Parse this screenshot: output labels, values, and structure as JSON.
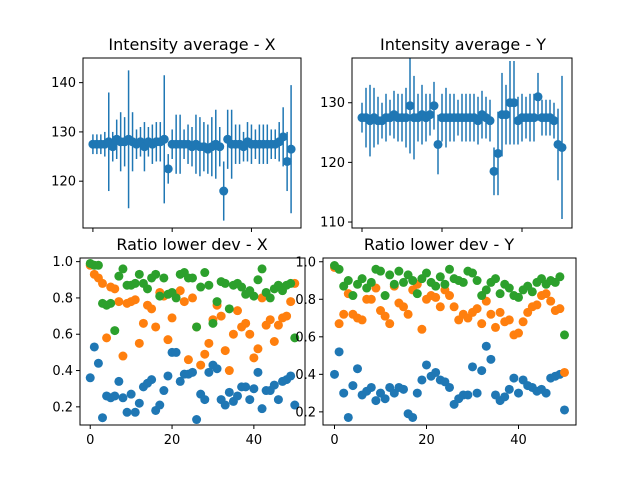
{
  "colors": {
    "blue": "#1f77b4",
    "orange": "#ff7f0e",
    "green": "#2ca02c"
  },
  "chart_data": [
    {
      "type": "scatter",
      "title": "Intensity average - X",
      "xlim": [
        -2.5,
        52.5
      ],
      "ylim": [
        110.5,
        145.0
      ],
      "yticks": [
        "120",
        "130",
        "140"
      ],
      "ytick_values": [
        120,
        130,
        140
      ],
      "xticks": [
        0,
        20,
        40
      ],
      "show_xtick_labels": false,
      "series": [
        {
          "color": "blue",
          "errorbars": true,
          "x": [
            0,
            1,
            2,
            3,
            4,
            5,
            6,
            7,
            8,
            9,
            10,
            11,
            12,
            13,
            14,
            15,
            16,
            17,
            18,
            19,
            20,
            21,
            22,
            23,
            24,
            25,
            26,
            27,
            28,
            29,
            30,
            31,
            32,
            33,
            34,
            35,
            36,
            37,
            38,
            39,
            40,
            41,
            42,
            43,
            44,
            45,
            46,
            47,
            48,
            49,
            50
          ],
          "y": [
            127.5,
            127.5,
            127.5,
            127.5,
            128.0,
            127.0,
            128.5,
            128.0,
            128.0,
            128.5,
            128.0,
            127.5,
            128.0,
            127.0,
            128.0,
            127.5,
            128.0,
            128.0,
            128.5,
            122.5,
            127.5,
            127.5,
            127.5,
            127.5,
            127.5,
            127.0,
            127.5,
            127.0,
            127.0,
            126.5,
            127.0,
            127.5,
            127.0,
            118.0,
            128.5,
            127.5,
            127.5,
            127.5,
            127.0,
            128.0,
            127.5,
            127.5,
            127.5,
            127.5,
            127.5,
            127.5,
            127.5,
            128.0,
            129.0,
            124.0,
            126.5
          ],
          "err": [
            2.0,
            2.0,
            2.0,
            2.5,
            10.0,
            3.0,
            4.0,
            6.0,
            5.0,
            14.0,
            6.0,
            3.0,
            3.0,
            5.0,
            3.0,
            4.0,
            4.0,
            4.0,
            13.0,
            3.0,
            3.0,
            6.0,
            6.0,
            3.0,
            4.0,
            4.0,
            6.0,
            6.0,
            5.0,
            5.0,
            6.0,
            7.0,
            4.0,
            6.0,
            6.0,
            7.0,
            4.0,
            4.0,
            3.0,
            4.0,
            4.0,
            3.0,
            4.0,
            4.0,
            4.0,
            3.0,
            3.0,
            4.0,
            6.0,
            6.0,
            13.0
          ]
        }
      ]
    },
    {
      "type": "scatter",
      "title": "Intensity average - Y",
      "xlim": [
        -2.5,
        52.5
      ],
      "ylim": [
        109.0,
        137.5
      ],
      "yticks": [
        "110",
        "120",
        "130"
      ],
      "ytick_values": [
        110,
        120,
        130
      ],
      "xticks": [
        0,
        20,
        40
      ],
      "show_xtick_labels": false,
      "series": [
        {
          "color": "blue",
          "errorbars": true,
          "x": [
            0,
            1,
            2,
            3,
            4,
            5,
            6,
            7,
            8,
            9,
            10,
            11,
            12,
            13,
            14,
            15,
            16,
            17,
            18,
            19,
            20,
            21,
            22,
            23,
            24,
            25,
            26,
            27,
            28,
            29,
            30,
            31,
            32,
            33,
            34,
            35,
            36,
            37,
            38,
            39,
            40,
            41,
            42,
            43,
            44,
            45,
            46,
            47,
            48,
            49,
            50
          ],
          "y": [
            127.5,
            127.5,
            127.0,
            127.5,
            127.0,
            127.0,
            127.5,
            127.5,
            128.0,
            127.5,
            127.5,
            127.5,
            129.5,
            127.5,
            127.5,
            128.0,
            127.5,
            128.0,
            129.5,
            123.0,
            127.5,
            127.5,
            127.5,
            127.5,
            127.5,
            127.5,
            127.5,
            127.5,
            127.5,
            127.0,
            128.0,
            127.5,
            127.0,
            118.5,
            121.5,
            128.0,
            128.0,
            130.0,
            130.0,
            127.0,
            127.5,
            127.5,
            127.5,
            127.5,
            131.0,
            127.5,
            127.5,
            127.5,
            127.0,
            123.0,
            122.5
          ],
          "err": [
            2.5,
            5.0,
            6.0,
            5.0,
            4.0,
            3.0,
            4.0,
            3.0,
            4.0,
            4.0,
            4.0,
            5.0,
            8.0,
            7.0,
            4.0,
            5.0,
            4.0,
            3.5,
            4.0,
            5.0,
            4.0,
            5.0,
            4.0,
            4.0,
            3.0,
            4.0,
            4.0,
            4.0,
            4.0,
            4.0,
            4.0,
            3.5,
            3.5,
            4.0,
            7.0,
            7.0,
            5.0,
            7.0,
            7.0,
            4.0,
            4.0,
            3.5,
            4.0,
            4.0,
            4.0,
            3.0,
            3.0,
            3.0,
            3.0,
            6.0,
            12.0
          ]
        }
      ]
    },
    {
      "type": "scatter",
      "title": "Ratio lower dev - X",
      "xlim": [
        -2.5,
        52.5
      ],
      "ylim": [
        0.1,
        1.02
      ],
      "yticks": [
        "0.2",
        "0.4",
        "0.6",
        "0.8",
        "1.0"
      ],
      "ytick_values": [
        0.2,
        0.4,
        0.6,
        0.8,
        1.0
      ],
      "xticks": [
        0,
        20,
        40
      ],
      "xtick_labels": [
        "0",
        "20",
        "40"
      ],
      "show_xtick_labels": true,
      "series": [
        {
          "color": "blue",
          "x": [
            0,
            1,
            2,
            3,
            4,
            5,
            6,
            7,
            8,
            9,
            10,
            11,
            12,
            13,
            14,
            15,
            16,
            17,
            18,
            19,
            20,
            21,
            22,
            23,
            24,
            25,
            26,
            27,
            28,
            29,
            30,
            31,
            32,
            33,
            34,
            35,
            36,
            37,
            38,
            39,
            40,
            41,
            42,
            43,
            44,
            45,
            46,
            47,
            48,
            49,
            50
          ],
          "y": [
            0.36,
            0.53,
            0.44,
            0.14,
            0.26,
            0.25,
            0.26,
            0.34,
            0.25,
            0.17,
            0.27,
            0.17,
            0.22,
            0.31,
            0.33,
            0.35,
            0.18,
            0.21,
            0.29,
            0.37,
            0.5,
            0.5,
            0.34,
            0.38,
            0.38,
            0.39,
            0.13,
            0.27,
            0.24,
            0.39,
            0.43,
            0.41,
            0.24,
            0.21,
            0.28,
            0.23,
            0.26,
            0.31,
            0.31,
            0.24,
            0.3,
            0.39,
            0.19,
            0.29,
            0.29,
            0.32,
            0.24,
            0.34,
            0.35,
            0.37,
            0.21
          ]
        },
        {
          "color": "orange",
          "x": [
            0,
            1,
            2,
            3,
            4,
            5,
            6,
            7,
            8,
            9,
            10,
            11,
            12,
            13,
            14,
            15,
            16,
            17,
            18,
            19,
            20,
            21,
            22,
            23,
            24,
            25,
            26,
            27,
            28,
            29,
            30,
            31,
            32,
            33,
            34,
            35,
            36,
            37,
            38,
            39,
            40,
            41,
            42,
            43,
            44,
            45,
            46,
            47,
            48,
            49,
            50
          ],
          "y": [
            0.98,
            0.93,
            0.91,
            0.88,
            0.58,
            0.86,
            0.85,
            0.78,
            0.48,
            0.77,
            0.78,
            0.79,
            0.55,
            0.66,
            0.76,
            0.74,
            0.64,
            0.83,
            0.81,
            0.57,
            0.69,
            0.82,
            0.84,
            0.78,
            0.46,
            0.8,
            0.64,
            0.43,
            0.49,
            0.55,
            0.68,
            0.76,
            0.7,
            0.51,
            0.4,
            0.6,
            0.73,
            0.64,
            0.66,
            0.6,
            0.47,
            0.52,
            0.8,
            0.65,
            0.68,
            0.56,
            0.65,
            0.69,
            0.7,
            0.78,
            0.88
          ]
        },
        {
          "color": "green",
          "x": [
            0,
            1,
            2,
            3,
            4,
            5,
            6,
            7,
            8,
            9,
            10,
            11,
            12,
            13,
            14,
            15,
            16,
            17,
            18,
            19,
            20,
            21,
            22,
            23,
            24,
            25,
            26,
            27,
            28,
            29,
            30,
            31,
            32,
            33,
            34,
            35,
            36,
            37,
            38,
            39,
            40,
            41,
            42,
            43,
            44,
            45,
            46,
            47,
            48,
            49,
            50
          ],
          "y": [
            0.99,
            0.98,
            0.98,
            0.77,
            0.76,
            0.77,
            0.62,
            0.92,
            0.96,
            0.87,
            0.87,
            0.88,
            0.93,
            0.88,
            0.85,
            0.91,
            0.93,
            0.81,
            0.91,
            0.82,
            0.83,
            0.8,
            0.93,
            0.94,
            0.91,
            0.91,
            0.64,
            0.86,
            0.94,
            0.87,
            0.66,
            0.78,
            0.89,
            0.88,
            0.74,
            0.87,
            0.88,
            0.86,
            0.82,
            0.84,
            0.81,
            0.9,
            0.96,
            0.83,
            0.8,
            0.85,
            0.87,
            0.84,
            0.87,
            0.88,
            0.58
          ]
        }
      ]
    },
    {
      "type": "scatter",
      "title": "Ratio lower dev - Y",
      "xlim": [
        -2.5,
        52.5
      ],
      "ylim": [
        0.13,
        1.02
      ],
      "yticks": [
        "0.2",
        "0.4",
        "0.6",
        "0.8",
        "1.0"
      ],
      "ytick_values": [
        0.2,
        0.4,
        0.6,
        0.8,
        1.0
      ],
      "xticks": [
        0,
        20,
        40
      ],
      "xtick_labels": [
        "0",
        "20",
        "40"
      ],
      "show_xtick_labels": true,
      "series": [
        {
          "color": "blue",
          "x": [
            0,
            1,
            2,
            3,
            4,
            5,
            6,
            7,
            8,
            9,
            10,
            11,
            12,
            13,
            14,
            15,
            16,
            17,
            18,
            19,
            20,
            21,
            22,
            23,
            24,
            25,
            26,
            27,
            28,
            29,
            30,
            31,
            32,
            33,
            34,
            35,
            36,
            37,
            38,
            39,
            40,
            41,
            42,
            43,
            44,
            45,
            46,
            47,
            48,
            49,
            50
          ],
          "y": [
            0.4,
            0.52,
            0.3,
            0.17,
            0.34,
            0.43,
            0.29,
            0.31,
            0.33,
            0.26,
            0.3,
            0.27,
            0.33,
            0.3,
            0.33,
            0.32,
            0.19,
            0.17,
            0.3,
            0.37,
            0.45,
            0.39,
            0.41,
            0.37,
            0.36,
            0.33,
            0.24,
            0.27,
            0.29,
            0.29,
            0.44,
            0.3,
            0.42,
            0.55,
            0.48,
            0.29,
            0.26,
            0.28,
            0.32,
            0.38,
            0.3,
            0.37,
            0.34,
            0.33,
            0.31,
            0.32,
            0.3,
            0.38,
            0.39,
            0.4,
            0.21
          ]
        },
        {
          "color": "orange",
          "x": [
            0,
            1,
            2,
            3,
            4,
            5,
            6,
            7,
            8,
            9,
            10,
            11,
            12,
            13,
            14,
            15,
            16,
            17,
            18,
            19,
            20,
            21,
            22,
            23,
            24,
            25,
            26,
            27,
            28,
            29,
            30,
            31,
            32,
            33,
            34,
            35,
            36,
            37,
            38,
            39,
            40,
            41,
            42,
            43,
            44,
            45,
            46,
            47,
            48,
            49,
            50
          ],
          "y": [
            0.97,
            0.67,
            0.72,
            0.83,
            0.72,
            0.7,
            0.69,
            0.8,
            0.8,
            0.86,
            0.74,
            0.71,
            0.67,
            0.87,
            0.78,
            0.76,
            0.72,
            0.85,
            0.88,
            0.64,
            0.8,
            0.82,
            0.81,
            0.76,
            0.85,
            0.82,
            0.76,
            0.69,
            0.72,
            0.7,
            0.73,
            0.75,
            0.67,
            0.79,
            0.72,
            0.65,
            0.73,
            0.68,
            0.69,
            0.61,
            0.62,
            0.68,
            0.73,
            0.76,
            0.77,
            0.82,
            0.83,
            0.79,
            0.74,
            0.75,
            0.41
          ]
        },
        {
          "color": "green",
          "x": [
            0,
            1,
            2,
            3,
            4,
            5,
            6,
            7,
            8,
            9,
            10,
            11,
            12,
            13,
            14,
            15,
            16,
            17,
            18,
            19,
            20,
            21,
            22,
            23,
            24,
            25,
            26,
            27,
            28,
            29,
            30,
            31,
            32,
            33,
            34,
            35,
            36,
            37,
            38,
            39,
            40,
            41,
            42,
            43,
            44,
            45,
            46,
            47,
            48,
            49,
            50
          ],
          "y": [
            0.98,
            0.96,
            0.87,
            0.9,
            0.82,
            0.88,
            0.91,
            0.86,
            0.89,
            0.96,
            0.95,
            0.82,
            0.93,
            0.88,
            0.95,
            0.89,
            0.93,
            0.9,
            0.83,
            0.91,
            0.94,
            0.89,
            0.87,
            0.92,
            0.88,
            0.96,
            0.91,
            0.9,
            0.89,
            0.95,
            0.94,
            0.9,
            0.82,
            0.85,
            0.89,
            0.91,
            0.83,
            0.88,
            0.86,
            0.82,
            0.81,
            0.85,
            0.87,
            0.84,
            0.89,
            0.91,
            0.88,
            0.9,
            0.89,
            0.92,
            0.61
          ]
        }
      ]
    }
  ]
}
